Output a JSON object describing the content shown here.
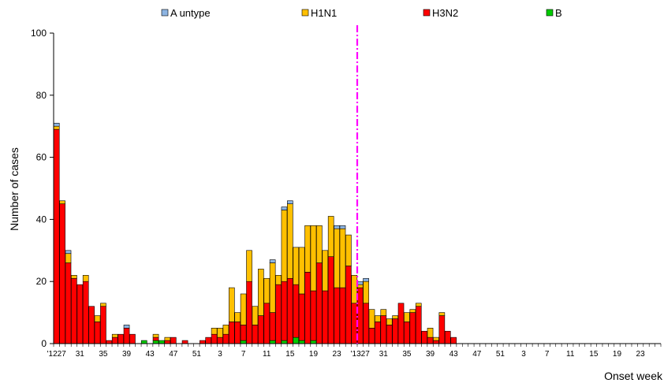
{
  "chart_data": {
    "type": "bar",
    "stacked": true,
    "title": "",
    "xlabel": "Onset week",
    "ylabel": "Number of cases",
    "ylim": [
      0,
      100
    ],
    "yticks": [
      0,
      20,
      40,
      60,
      80,
      100
    ],
    "grid": false,
    "legend_position": "top",
    "legend": [
      "A untype",
      "H1N1",
      "H3N2",
      "B"
    ],
    "colors": {
      "A untype": "#8db4e2",
      "H1N1": "#ffc000",
      "H3N2": "#ff0000",
      "B": "#00cc00"
    },
    "categories": [
      "'12 27",
      "28",
      "29",
      "30",
      "31",
      "32",
      "33",
      "34",
      "35",
      "36",
      "37",
      "38",
      "39",
      "40",
      "41",
      "42",
      "43",
      "44",
      "45",
      "46",
      "47",
      "48",
      "49",
      "50",
      "51",
      "52",
      "1",
      "2",
      "3",
      "4",
      "5",
      "6",
      "7",
      "8",
      "9",
      "10",
      "11",
      "12",
      "13",
      "14",
      "15",
      "16",
      "17",
      "18",
      "19",
      "20",
      "21",
      "22",
      "23",
      "24",
      "25",
      "26",
      "'13 27",
      "28",
      "29",
      "30",
      "31",
      "32",
      "33",
      "34",
      "35",
      "36",
      "37",
      "38",
      "39",
      "40",
      "41",
      "42",
      "43",
      "44",
      "45",
      "46",
      "47",
      "48",
      "49",
      "50",
      "51",
      "52",
      "1",
      "2",
      "3",
      "4",
      "5",
      "6",
      "7",
      "8",
      "9",
      "10",
      "11",
      "12",
      "13",
      "14",
      "15",
      "16",
      "17",
      "18",
      "19",
      "20",
      "21",
      "22",
      "23",
      "24",
      "25",
      "26"
    ],
    "tick_labels": [
      {
        "index": 0,
        "label": "'1227"
      },
      {
        "index": 4,
        "label": "31"
      },
      {
        "index": 8,
        "label": "35"
      },
      {
        "index": 12,
        "label": "39"
      },
      {
        "index": 16,
        "label": "43"
      },
      {
        "index": 20,
        "label": "47"
      },
      {
        "index": 24,
        "label": "51"
      },
      {
        "index": 28,
        "label": "3"
      },
      {
        "index": 32,
        "label": "7"
      },
      {
        "index": 36,
        "label": "11"
      },
      {
        "index": 40,
        "label": "15"
      },
      {
        "index": 44,
        "label": "19"
      },
      {
        "index": 48,
        "label": "23"
      },
      {
        "index": 52,
        "label": "'1327"
      },
      {
        "index": 56,
        "label": "31"
      },
      {
        "index": 60,
        "label": "35"
      },
      {
        "index": 64,
        "label": "39"
      },
      {
        "index": 68,
        "label": "43"
      },
      {
        "index": 72,
        "label": "47"
      },
      {
        "index": 76,
        "label": "51"
      },
      {
        "index": 80,
        "label": "3"
      },
      {
        "index": 84,
        "label": "7"
      },
      {
        "index": 88,
        "label": "11"
      },
      {
        "index": 92,
        "label": "15"
      },
      {
        "index": 96,
        "label": "19"
      },
      {
        "index": 100,
        "label": "23"
      }
    ],
    "series": [
      {
        "name": "B",
        "values": [
          0,
          0,
          0,
          0,
          0,
          0,
          0,
          0,
          0,
          0,
          0,
          0,
          0,
          0,
          0,
          1,
          0,
          1,
          1,
          0,
          0,
          0,
          0,
          0,
          0,
          0,
          0,
          0,
          0,
          0,
          0,
          0,
          1,
          0,
          0,
          0,
          0,
          1,
          0,
          1,
          0,
          2,
          1,
          0,
          1,
          0,
          0,
          0,
          0,
          0,
          0,
          0,
          0,
          0,
          0,
          0,
          0,
          0,
          0,
          0,
          0,
          0,
          0,
          0,
          0,
          0,
          0,
          0,
          0,
          0,
          0,
          0,
          0,
          0,
          0,
          0,
          0,
          0,
          0,
          0,
          0,
          0,
          0,
          0,
          0,
          0,
          0,
          0,
          0,
          0,
          0,
          0,
          0,
          0,
          0,
          0,
          0,
          0,
          0,
          0,
          0,
          0,
          0,
          0
        ]
      },
      {
        "name": "H3N2",
        "values": [
          69,
          45,
          26,
          21,
          19,
          20,
          12,
          7,
          12,
          1,
          2,
          3,
          5,
          3,
          0,
          0,
          0,
          1,
          0,
          1,
          2,
          0,
          1,
          0,
          0,
          1,
          2,
          3,
          2,
          3,
          7,
          7,
          5,
          20,
          6,
          9,
          13,
          9,
          19,
          19,
          21,
          17,
          15,
          23,
          16,
          26,
          17,
          28,
          18,
          18,
          25,
          13,
          18,
          13,
          5,
          7,
          9,
          6,
          8,
          13,
          7,
          10,
          12,
          4,
          2,
          1,
          9,
          4,
          2,
          0,
          0,
          0,
          0,
          0,
          0,
          0,
          0,
          0,
          0,
          0,
          0,
          0,
          0,
          0,
          0,
          0,
          0,
          0,
          0,
          0,
          0,
          0,
          0,
          0,
          0,
          0,
          0,
          0,
          0,
          0,
          0,
          0,
          0,
          0
        ]
      },
      {
        "name": "H1N1",
        "values": [
          1,
          1,
          3,
          1,
          0,
          2,
          0,
          2,
          1,
          0,
          1,
          0,
          0,
          0,
          0,
          0,
          0,
          1,
          0,
          1,
          0,
          0,
          0,
          0,
          0,
          0,
          0,
          2,
          3,
          3,
          11,
          3,
          10,
          10,
          6,
          15,
          8,
          16,
          3,
          23,
          24,
          12,
          15,
          15,
          21,
          12,
          13,
          13,
          19,
          19,
          10,
          9,
          1,
          7,
          6,
          2,
          2,
          2,
          1,
          0,
          3,
          1,
          1,
          0,
          3,
          1,
          1,
          0,
          0,
          0,
          0,
          0,
          0,
          0,
          0,
          0,
          0,
          0,
          0,
          0,
          0,
          0,
          0,
          0,
          0,
          0,
          0,
          0,
          0,
          0,
          0,
          0,
          0,
          0,
          0,
          0,
          0,
          0,
          0,
          0,
          0,
          0,
          0,
          0
        ]
      },
      {
        "name": "A untype",
        "values": [
          1,
          0,
          1,
          0,
          0,
          0,
          0,
          0,
          0,
          0,
          0,
          0,
          1,
          0,
          0,
          0,
          0,
          0,
          0,
          0,
          0,
          0,
          0,
          0,
          0,
          0,
          0,
          0,
          0,
          0,
          0,
          0,
          0,
          0,
          0,
          0,
          0,
          1,
          0,
          1,
          1,
          0,
          0,
          0,
          0,
          0,
          0,
          0,
          1,
          1,
          0,
          0,
          1,
          1,
          0,
          0,
          0,
          0,
          0,
          0,
          0,
          0,
          0,
          0,
          0,
          0,
          0,
          0,
          0,
          0,
          0,
          0,
          0,
          0,
          0,
          0,
          0,
          0,
          0,
          0,
          0,
          0,
          0,
          0,
          0,
          0,
          0,
          0,
          0,
          0,
          0,
          0,
          0,
          0,
          0,
          0,
          0,
          0,
          0,
          0,
          0,
          0,
          0,
          0
        ]
      }
    ],
    "annotations": [
      {
        "type": "vertical-dashed-line",
        "between_categories": [
          "26",
          "'13 27"
        ],
        "color": "#ff00ff"
      }
    ]
  }
}
